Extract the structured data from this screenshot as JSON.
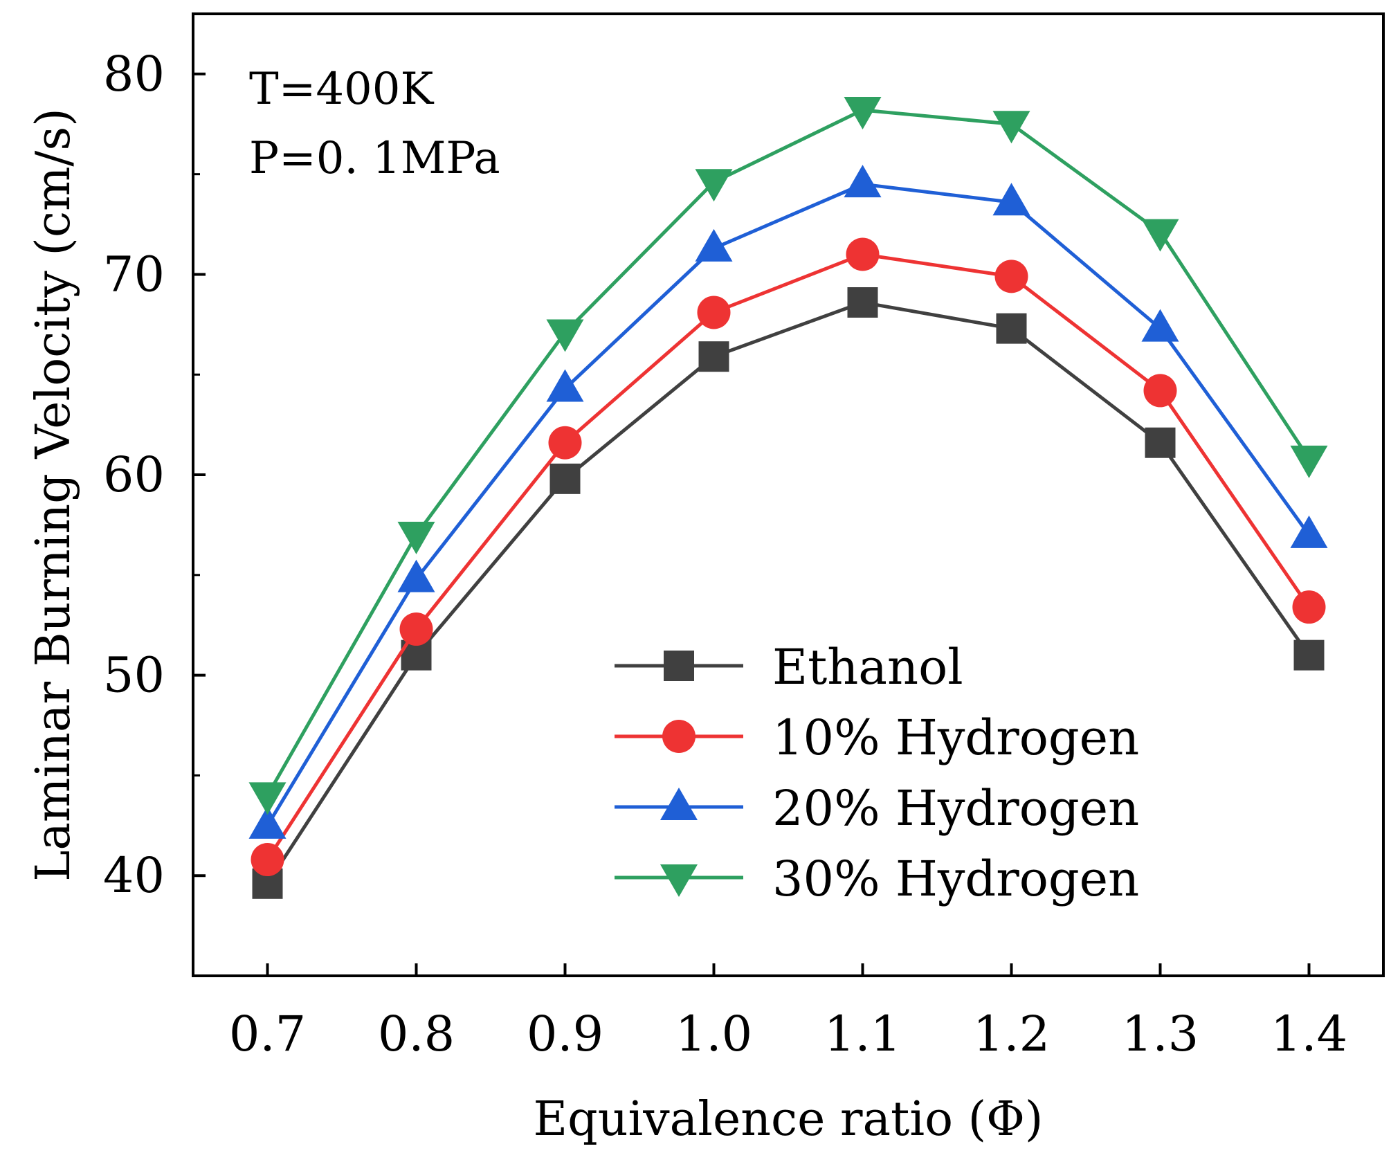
{
  "chart_data": {
    "type": "line",
    "xlabel": "Equivalence ratio (Φ)",
    "ylabel": "Laminar Burning Velocity (cm/s)",
    "xlim": [
      0.65,
      1.45
    ],
    "ylim": [
      35,
      83
    ],
    "x": [
      0.7,
      0.8,
      0.9,
      1.0,
      1.1,
      1.2,
      1.3,
      1.4
    ],
    "x_tick_labels": [
      "0.7",
      "0.8",
      "0.9",
      "1.0",
      "1.1",
      "1.2",
      "1.3",
      "1.4"
    ],
    "y_ticks": [
      40,
      50,
      60,
      70,
      80
    ],
    "y_tick_labels": [
      "40",
      "50",
      "60",
      "70",
      "80"
    ],
    "y_minor_ticks": [
      45,
      55,
      65,
      75
    ],
    "legend_position": "bottom-right",
    "series": [
      {
        "name": "Ethanol",
        "color": "#404040",
        "marker": "square",
        "values": [
          39.6,
          51.0,
          59.8,
          65.9,
          68.6,
          67.3,
          61.6,
          51.0
        ]
      },
      {
        "name": "10% Hydrogen",
        "color": "#ee3333",
        "marker": "circle",
        "values": [
          40.8,
          52.3,
          61.6,
          68.1,
          71.0,
          69.9,
          64.2,
          53.4
        ]
      },
      {
        "name": "20% Hydrogen",
        "color": "#1f5fd6",
        "marker": "triangle-up",
        "values": [
          42.5,
          54.8,
          64.3,
          71.3,
          74.5,
          73.6,
          67.3,
          57.0
        ]
      },
      {
        "name": "30% Hydrogen",
        "color": "#2ea060",
        "marker": "triangle-down",
        "values": [
          44.0,
          57.0,
          67.1,
          74.6,
          78.2,
          77.5,
          72.1,
          60.8
        ]
      }
    ]
  },
  "annotations": {
    "line1": "T=400K",
    "line2": "P=0. 1MPa"
  }
}
